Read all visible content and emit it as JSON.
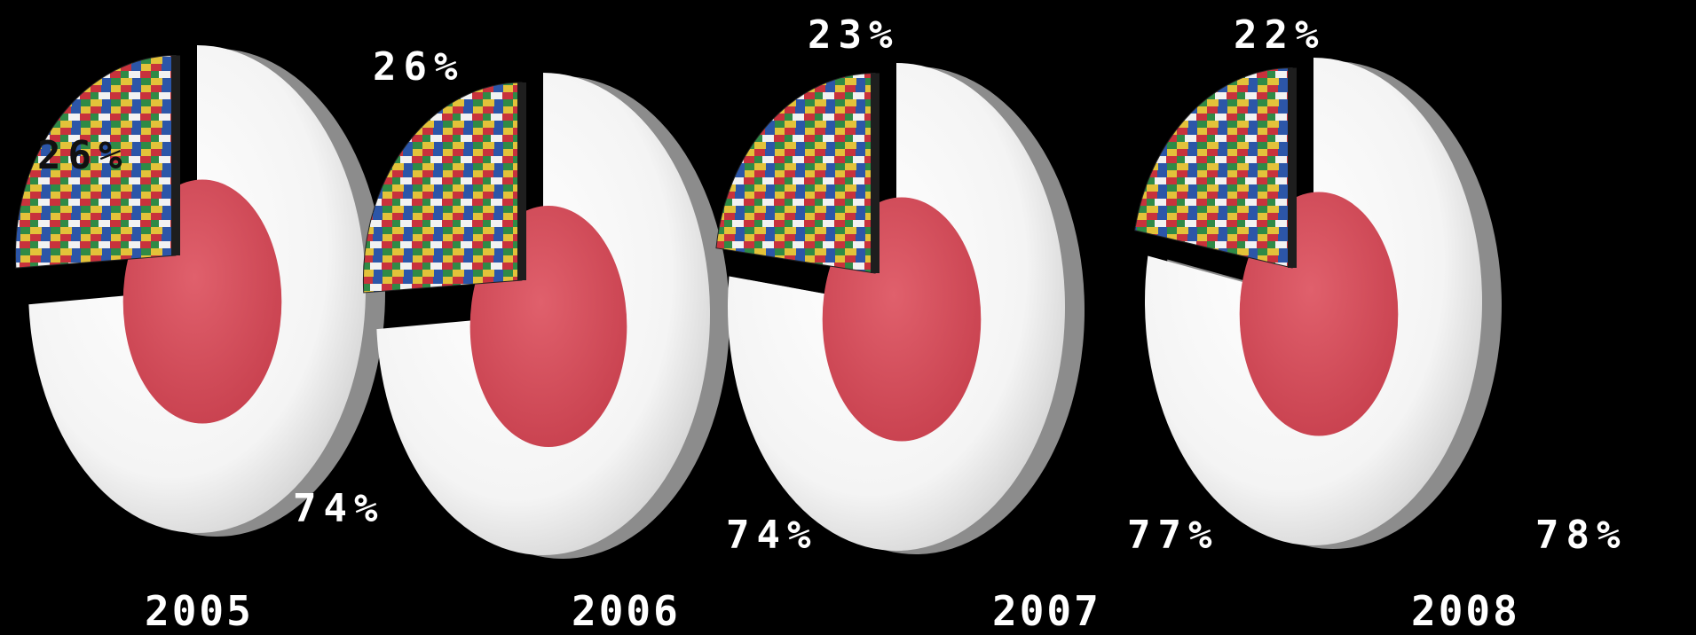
{
  "chart_data": {
    "type": "pie",
    "style": "3d exploded pie",
    "unit": "%",
    "label_font_color": "#ffffff",
    "charts": [
      {
        "category": "2005",
        "slices": [
          {
            "value": 74,
            "label": "74%",
            "color": "#ffffff",
            "inner_color": "#d6505d"
          },
          {
            "value": 26,
            "label": "26%",
            "fill": "flags-pattern",
            "exploded": true
          }
        ]
      },
      {
        "category": "2006",
        "slices": [
          {
            "value": 74,
            "label": "74%",
            "color": "#ffffff",
            "inner_color": "#d6505d"
          },
          {
            "value": 26,
            "label": "26%",
            "fill": "flags-pattern",
            "exploded": true
          }
        ]
      },
      {
        "category": "2007",
        "slices": [
          {
            "value": 77,
            "label": "77%",
            "color": "#ffffff",
            "inner_color": "#d6505d"
          },
          {
            "value": 23,
            "label": "23%",
            "fill": "flags-pattern",
            "exploded": true
          }
        ]
      },
      {
        "category": "2008",
        "slices": [
          {
            "value": 78,
            "label": "78%",
            "color": "#ffffff",
            "inner_color": "#d6505d"
          },
          {
            "value": 22,
            "label": "22%",
            "fill": "flags-pattern",
            "exploded": true
          }
        ]
      }
    ]
  }
}
